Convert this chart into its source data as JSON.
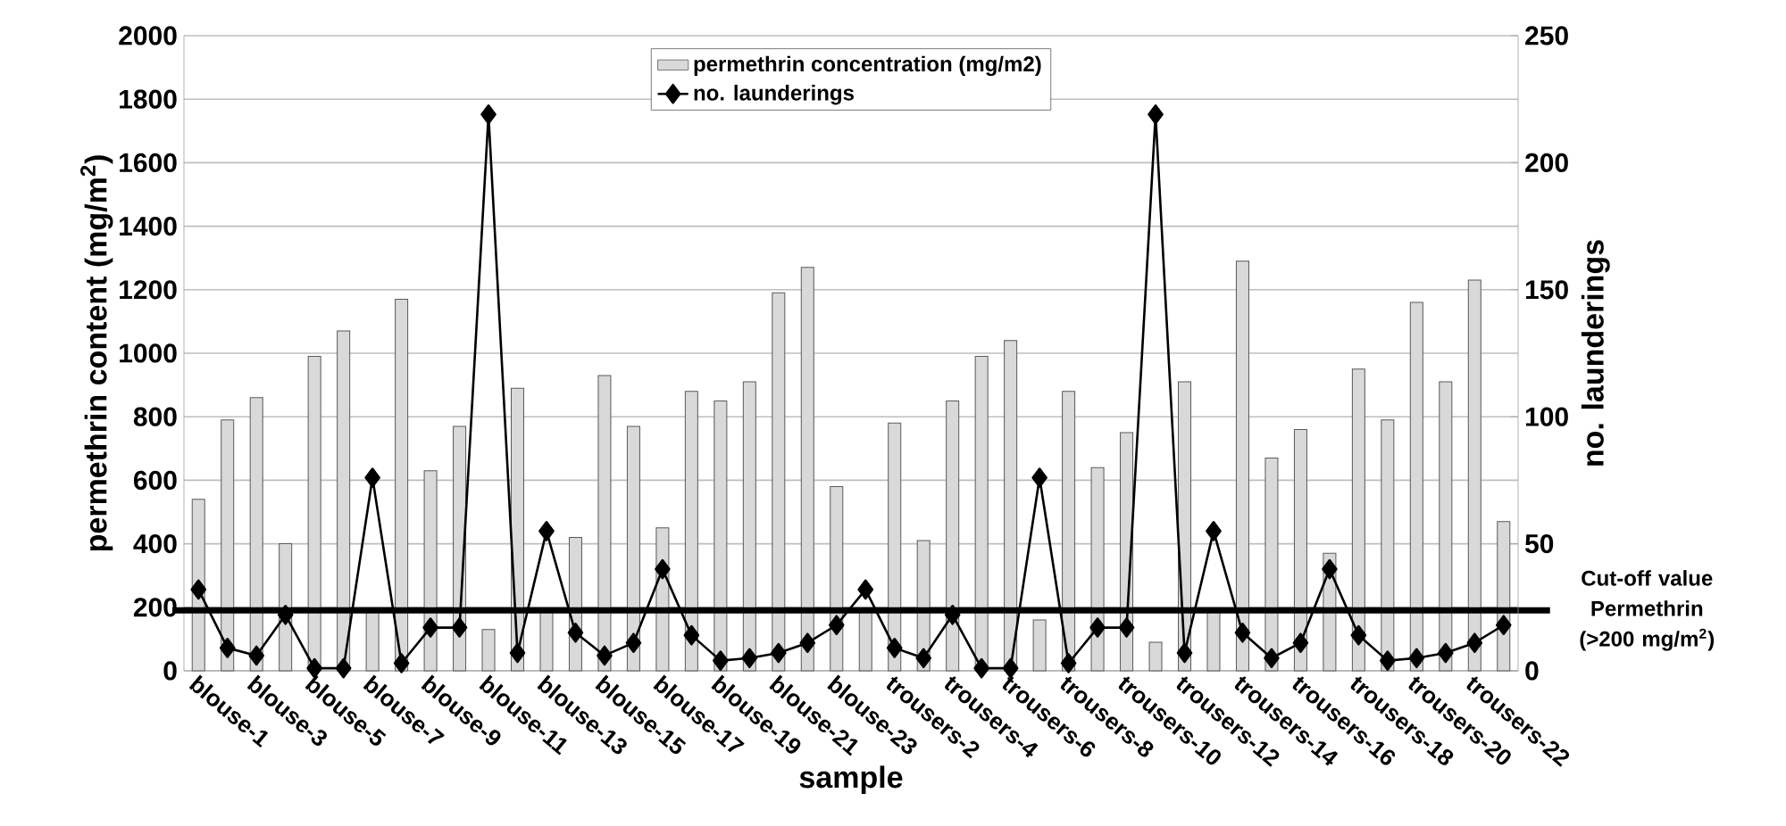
{
  "chart_data": {
    "type": "bar",
    "xlabel": "sample",
    "ylabel": "permethrin content (mg/m$^{2}$)",
    "y2label": "no. launderings",
    "categories": [
      "blouse-1",
      null,
      "blouse-3",
      null,
      "blouse-5",
      null,
      "blouse-7",
      null,
      "blouse-9",
      null,
      "blouse-11",
      null,
      "blouse-13",
      null,
      "blouse-15",
      null,
      "blouse-17",
      null,
      "blouse-19",
      null,
      "blouse-21",
      null,
      "blouse-23",
      null,
      "trousers-2",
      null,
      "trousers-4",
      null,
      "trousers-6",
      null,
      "trousers-8",
      null,
      "trousers-10",
      null,
      "trousers-12",
      null,
      "trousers-14",
      null,
      "trousers-16",
      null,
      "trousers-18",
      null,
      "trousers-20",
      null,
      "trousers-22",
      null
    ],
    "series": [
      {
        "name": "permethrin concentration (mg/m2)",
        "color": "#d9d9d9",
        "values": [
          540,
          790,
          860,
          400,
          990,
          1070,
          185,
          1170,
          630,
          770,
          130,
          890,
          185,
          420,
          930,
          770,
          450,
          880,
          850,
          910,
          1190,
          1270,
          580,
          185,
          780,
          410,
          850,
          990,
          1040,
          160,
          880,
          640,
          750,
          90,
          910,
          185,
          1290,
          670,
          760,
          370,
          950,
          790,
          1160,
          910,
          1230,
          470
        ]
      },
      {
        "name": "no. launderings",
        "type": "line",
        "axis": "y2",
        "color": "#000000",
        "marker": "diamond",
        "values": [
          32,
          9,
          6,
          22,
          1,
          1,
          76,
          3,
          17,
          17,
          219,
          7,
          55,
          15,
          6,
          11,
          40,
          14,
          4,
          5,
          7,
          11,
          18,
          32,
          9,
          5,
          22,
          1,
          1,
          76,
          3,
          17,
          17,
          219,
          7,
          55,
          15,
          5,
          11,
          40,
          14,
          4,
          5,
          7,
          11,
          18
        ]
      }
    ],
    "ylim": [
      0,
      2000
    ],
    "yticks": [
      0,
      200,
      400,
      600,
      800,
      1000,
      1200,
      1400,
      1600,
      1800,
      2000
    ],
    "y2lim": [
      0,
      250
    ],
    "y2ticks": [
      0,
      50,
      100,
      150,
      200,
      250
    ],
    "grid": "y",
    "legend": "top",
    "ref_lines": [
      {
        "axis": "y",
        "value": 190,
        "label": "Cut-off value Permethrin (>200 mg/m$^{2}$)",
        "color": "#000000"
      }
    ]
  }
}
